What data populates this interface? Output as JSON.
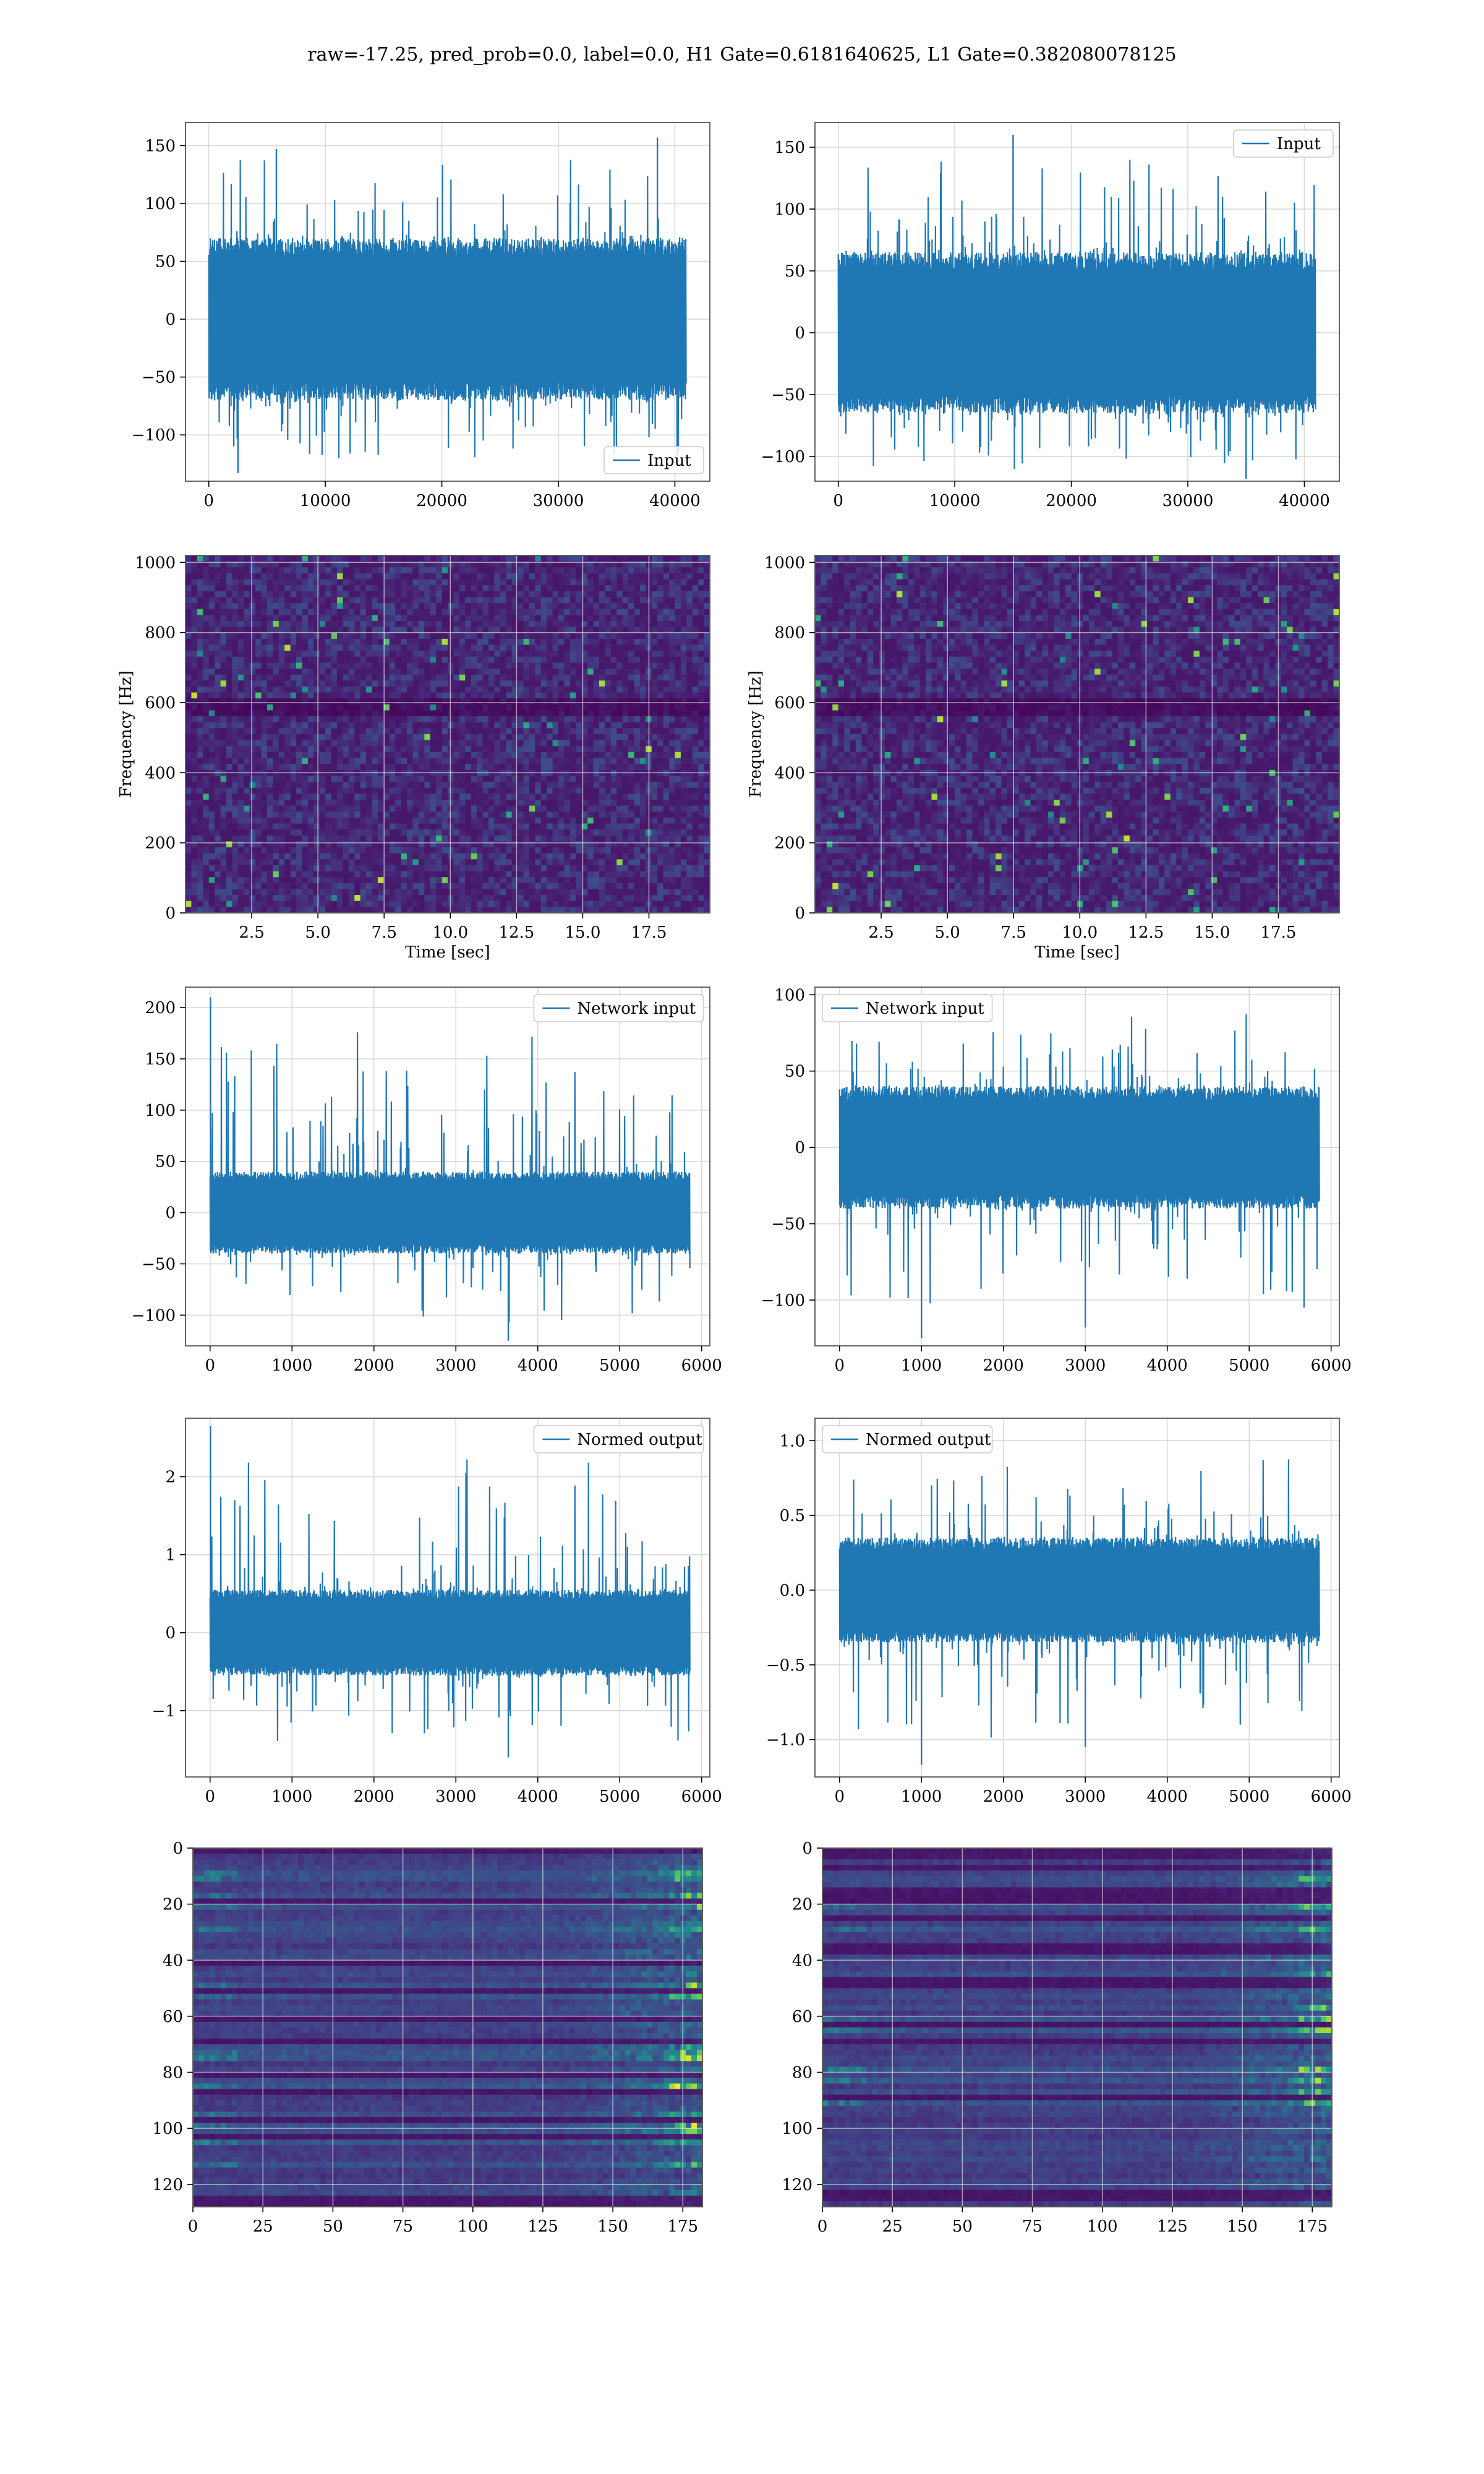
{
  "figure": {
    "suptitle": "raw=-17.25, pred_prob=0.0, label=0.0, H1 Gate=0.6181640625, L1 Gate=0.382080078125"
  },
  "colors": {
    "series": "#1f77b4",
    "grid": "#d9d9d9",
    "spine": "#555555",
    "legend_border": "#cccccc"
  },
  "chart_data": [
    {
      "panel": "row1-left",
      "type": "line",
      "legend": "Input",
      "legend_loc": "lower right",
      "xlim": [
        -2000,
        43000
      ],
      "ylim": [
        -140,
        170
      ],
      "xticks": [
        0,
        10000,
        20000,
        30000,
        40000
      ],
      "yticks": [
        -100,
        -50,
        0,
        50,
        100,
        150
      ],
      "x_range": [
        0,
        40960
      ],
      "band": [
        -70,
        70
      ],
      "peak_max": 157,
      "peak_min": -133,
      "peaks": [
        [
          5800,
          147
        ],
        [
          38500,
          157
        ],
        [
          2500,
          -133
        ]
      ],
      "grid": true,
      "xlabel": "",
      "ylabel": ""
    },
    {
      "panel": "row1-right",
      "type": "line",
      "legend": "Input",
      "legend_loc": "upper right",
      "xlim": [
        -2000,
        43000
      ],
      "ylim": [
        -120,
        170
      ],
      "xticks": [
        0,
        10000,
        20000,
        30000,
        40000
      ],
      "yticks": [
        -100,
        -50,
        0,
        50,
        100,
        150
      ],
      "x_range": [
        0,
        40960
      ],
      "band": [
        -65,
        65
      ],
      "peak_max": 160,
      "peak_min": -122,
      "peaks": [
        [
          15000,
          160
        ],
        [
          35000,
          -118
        ]
      ],
      "grid": true,
      "xlabel": "",
      "ylabel": ""
    },
    {
      "panel": "row2-left",
      "type": "heatmap",
      "colormap": "viridis",
      "xlim": [
        0,
        19.8
      ],
      "ylim": [
        0,
        1020
      ],
      "xticks": [
        2.5,
        5.0,
        7.5,
        10.0,
        12.5,
        15.0,
        17.5
      ],
      "yticks": [
        0,
        200,
        400,
        600,
        800,
        1000
      ],
      "xlabel": "Time [sec]",
      "ylabel": "Frequency [Hz]",
      "grid": true
    },
    {
      "panel": "row2-right",
      "type": "heatmap",
      "colormap": "viridis",
      "xlim": [
        0,
        19.8
      ],
      "ylim": [
        0,
        1020
      ],
      "xticks": [
        2.5,
        5.0,
        7.5,
        10.0,
        12.5,
        15.0,
        17.5
      ],
      "yticks": [
        0,
        200,
        400,
        600,
        800,
        1000
      ],
      "xlabel": "Time [sec]",
      "ylabel": "Frequency [Hz]",
      "grid": true
    },
    {
      "panel": "row3-left",
      "type": "line",
      "legend": "Network input",
      "legend_loc": "upper right",
      "xlim": [
        -300,
        6100
      ],
      "ylim": [
        -130,
        220
      ],
      "xticks": [
        0,
        1000,
        2000,
        3000,
        4000,
        5000,
        6000
      ],
      "yticks": [
        -100,
        -50,
        0,
        50,
        100,
        150,
        200
      ],
      "x_range": [
        0,
        5856
      ],
      "band": [
        -40,
        40
      ],
      "peak_max": 210,
      "peak_min": -125,
      "peaks": [
        [
          5,
          210
        ],
        [
          3640,
          -125
        ],
        [
          300,
          133
        ]
      ],
      "grid": true,
      "xlabel": "",
      "ylabel": ""
    },
    {
      "panel": "row3-right",
      "type": "line",
      "legend": "Network input",
      "legend_loc": "upper left",
      "xlim": [
        -300,
        6100
      ],
      "ylim": [
        -130,
        105
      ],
      "xticks": [
        0,
        1000,
        2000,
        3000,
        4000,
        5000,
        6000
      ],
      "yticks": [
        -100,
        -50,
        0,
        50,
        100
      ],
      "x_range": [
        0,
        5856
      ],
      "band": [
        -40,
        40
      ],
      "peak_max": 100,
      "peak_min": -125,
      "peaks": [
        [
          1000,
          -125
        ],
        [
          3000,
          -118
        ]
      ],
      "grid": true,
      "xlabel": "",
      "ylabel": ""
    },
    {
      "panel": "row4-left",
      "type": "line",
      "legend": "Normed output",
      "legend_loc": "upper right",
      "xlim": [
        -300,
        6100
      ],
      "ylim": [
        -1.85,
        2.75
      ],
      "xticks": [
        0,
        1000,
        2000,
        3000,
        4000,
        5000,
        6000
      ],
      "yticks": [
        -1,
        0,
        1,
        2
      ],
      "x_range": [
        0,
        5856
      ],
      "band": [
        -0.55,
        0.55
      ],
      "peak_max": 2.65,
      "peak_min": -1.6,
      "peaks": [
        [
          5,
          2.65
        ],
        [
          3640,
          -1.6
        ],
        [
          300,
          1.7
        ]
      ],
      "grid": true,
      "xlabel": "",
      "ylabel": ""
    },
    {
      "panel": "row4-right",
      "type": "line",
      "legend": "Normed output",
      "legend_loc": "upper left",
      "xlim": [
        -300,
        6100
      ],
      "ylim": [
        -1.25,
        1.15
      ],
      "xticks": [
        0,
        1000,
        2000,
        3000,
        4000,
        5000,
        6000
      ],
      "yticks": [
        -1.0,
        -0.5,
        0.0,
        0.5,
        1.0
      ],
      "x_range": [
        0,
        5856
      ],
      "band": [
        -0.35,
        0.35
      ],
      "peak_max": 1.05,
      "peak_min": -1.17,
      "peaks": [
        [
          1000,
          -1.17
        ],
        [
          3000,
          -1.05
        ]
      ],
      "grid": true,
      "xlabel": "",
      "ylabel": ""
    },
    {
      "panel": "row5-left",
      "type": "heatmap",
      "colormap": "viridis",
      "xlim": [
        0,
        182
      ],
      "ylim": [
        0,
        128
      ],
      "y_inverted": true,
      "xticks": [
        0,
        25,
        50,
        75,
        100,
        125,
        150,
        175
      ],
      "yticks": [
        0,
        20,
        40,
        60,
        80,
        100,
        120
      ],
      "grid": true,
      "xlabel": "",
      "ylabel": ""
    },
    {
      "panel": "row5-right",
      "type": "heatmap",
      "colormap": "viridis",
      "xlim": [
        0,
        182
      ],
      "ylim": [
        0,
        128
      ],
      "y_inverted": true,
      "xticks": [
        0,
        25,
        50,
        75,
        100,
        125,
        150,
        175
      ],
      "yticks": [
        0,
        20,
        40,
        60,
        80,
        100,
        120
      ],
      "grid": true,
      "xlabel": "",
      "ylabel": ""
    }
  ]
}
